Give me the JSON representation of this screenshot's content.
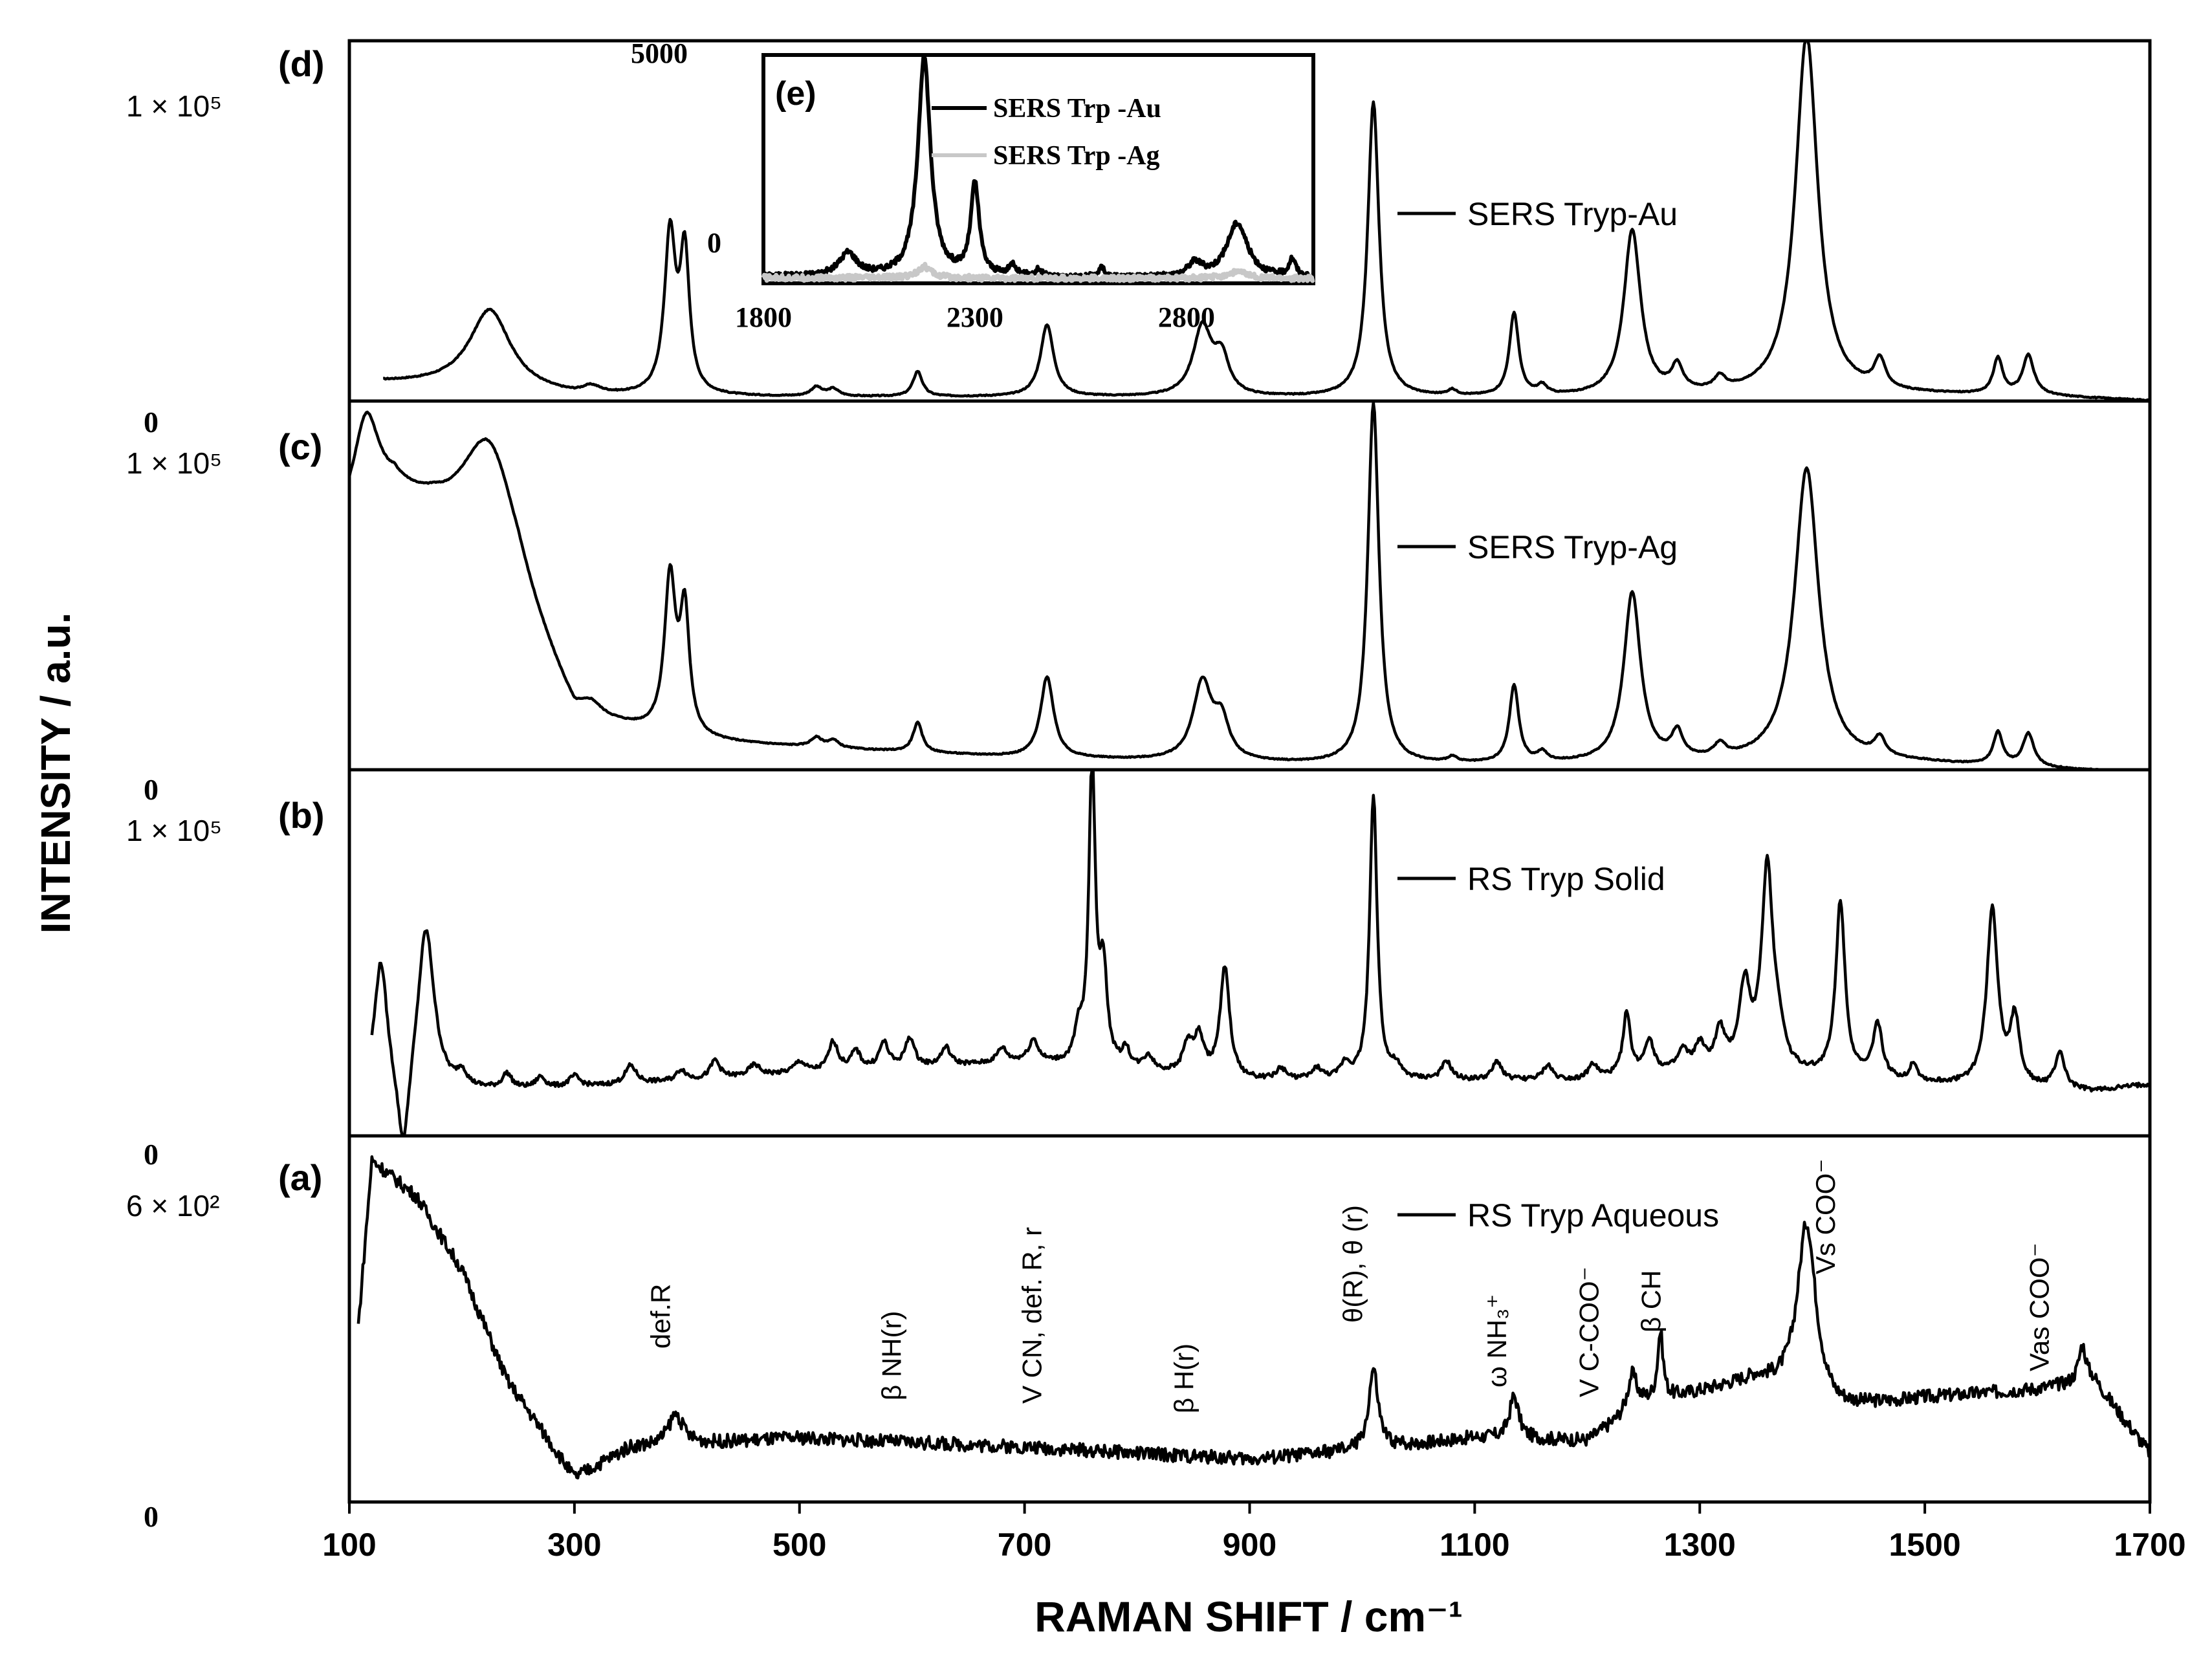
{
  "chart_data": {
    "type": "line",
    "xlabel": "RAMAN SHIFT / cm⁻¹",
    "ylabel": "INTENSITY / a.u.",
    "xlim": [
      100,
      1700
    ],
    "xticks": [
      "100",
      "300",
      "500",
      "700",
      "900",
      "1100",
      "1300",
      "1500",
      "1700"
    ],
    "panels": [
      {
        "id": "d",
        "label": "(d)",
        "ytop_label": "1 × 10⁵",
        "ybottom_label": "0",
        "ylim": [
          0,
          100000
        ],
        "series": [
          {
            "name": "SERS Tryp-Au",
            "legend": "SERS Tryp-Au",
            "baseline": [
              [
                130,
                5000
              ],
              [
                200,
                4000
              ],
              [
                300,
                1000
              ],
              [
                700,
                1000
              ],
              [
                900,
                800
              ],
              [
                1200,
                800
              ],
              [
                1500,
                1500
              ],
              [
                1600,
                1200
              ],
              [
                1700,
                0
              ]
            ],
            "peaks": [
              [
                225,
                22000,
                22
              ],
              [
                315,
                2000,
                10
              ],
              [
                385,
                44000,
                6
              ],
              [
                398,
                38000,
                5
              ],
              [
                515,
                2500,
                6
              ],
              [
                530,
                2000,
                6
              ],
              [
                605,
                7000,
                5
              ],
              [
                720,
                20000,
                7
              ],
              [
                858,
                19000,
                10
              ],
              [
                875,
                10000,
                8
              ],
              [
                1010,
                82000,
                6
              ],
              [
                1080,
                1500,
                5
              ],
              [
                1135,
                23000,
                5
              ],
              [
                1160,
                2500,
                5
              ],
              [
                1240,
                46000,
                9
              ],
              [
                1280,
                7000,
                6
              ],
              [
                1318,
                3500,
                6
              ],
              [
                1395,
                100000,
                12
              ],
              [
                1460,
                8000,
                6
              ],
              [
                1565,
                10000,
                5
              ],
              [
                1592,
                11000,
                6
              ]
            ]
          }
        ]
      },
      {
        "id": "c",
        "label": "(c)",
        "ytop_label": "1 × 10⁵",
        "ybottom_label": "0",
        "ylim": [
          0,
          100000
        ],
        "series": [
          {
            "name": "SERS Tryp-Ag",
            "legend": "SERS Tryp-Ag",
            "baseline": [
              [
                100,
                65000
              ],
              [
                140,
                72000
              ],
              [
                175,
                65000
              ],
              [
                250,
                40000
              ],
              [
                300,
                12000
              ],
              [
                400,
                7000
              ],
              [
                700,
                3000
              ],
              [
                1000,
                1000
              ],
              [
                1300,
                1500
              ],
              [
                1500,
                1500
              ],
              [
                1700,
                -1000
              ]
            ],
            "peaks": [
              [
                115,
                26000,
                14
              ],
              [
                225,
                40000,
                32
              ],
              [
                315,
                3000,
                10
              ],
              [
                385,
                42000,
                6
              ],
              [
                398,
                33000,
                5
              ],
              [
                515,
                2500,
                6
              ],
              [
                530,
                2000,
                6
              ],
              [
                605,
                8000,
                5
              ],
              [
                720,
                22000,
                7
              ],
              [
                858,
                21000,
                10
              ],
              [
                875,
                10000,
                8
              ],
              [
                1010,
                98000,
                6
              ],
              [
                1080,
                1500,
                5
              ],
              [
                1135,
                21000,
                5
              ],
              [
                1160,
                2500,
                5
              ],
              [
                1240,
                46000,
                9
              ],
              [
                1280,
                7000,
                6
              ],
              [
                1318,
                3500,
                6
              ],
              [
                1395,
                80000,
                13
              ],
              [
                1460,
                5000,
                6
              ],
              [
                1565,
                9000,
                5
              ],
              [
                1592,
                9000,
                6
              ]
            ]
          }
        ]
      },
      {
        "id": "b",
        "label": "(b)",
        "ytop_label": "1 × 10⁵",
        "ybottom_label": "0",
        "ylim": [
          0,
          100000
        ],
        "series": [
          {
            "name": "RS Tryp Solid",
            "legend": "RS Tryp Solid",
            "baseline": [
              [
                120,
                12000
              ],
              [
                200,
                12000
              ],
              [
                300,
                13000
              ],
              [
                500,
                17000
              ],
              [
                700,
                20000
              ],
              [
                900,
                15000
              ],
              [
                1100,
                15000
              ],
              [
                1200,
                15000
              ],
              [
                1300,
                18000
              ],
              [
                1500,
                14000
              ],
              [
                1650,
                12000
              ],
              [
                1700,
                14000
              ]
            ],
            "peaks": [
              [
                128,
                35000,
                7
              ],
              [
                148,
                -24000,
                6
              ],
              [
                168,
                45000,
                9
              ],
              [
                200,
                4000,
                5
              ],
              [
                240,
                4000,
                5
              ],
              [
                270,
                3000,
                5
              ],
              [
                300,
                3000,
                6
              ],
              [
                350,
                5000,
                6
              ],
              [
                395,
                3000,
                5
              ],
              [
                425,
                5000,
                5
              ],
              [
                460,
                3000,
                6
              ],
              [
                500,
                3000,
                6
              ],
              [
                530,
                8000,
                5
              ],
              [
                550,
                5000,
                5
              ],
              [
                575,
                7000,
                5
              ],
              [
                598,
                8000,
                5
              ],
              [
                630,
                5000,
                5
              ],
              [
                680,
                4000,
                5
              ],
              [
                708,
                6000,
                5
              ],
              [
                748,
                8000,
                4
              ],
              [
                760,
                82000,
                3.5
              ],
              [
                770,
                25000,
                4
              ],
              [
                790,
                5000,
                4
              ],
              [
                810,
                4000,
                5
              ],
              [
                845,
                8000,
                5
              ],
              [
                855,
                10000,
                5
              ],
              [
                878,
                30000,
                5
              ],
              [
                928,
                3000,
                5
              ],
              [
                960,
                3000,
                5
              ],
              [
                985,
                4000,
                5
              ],
              [
                1010,
                78000,
                4
              ],
              [
                1030,
                3000,
                5
              ],
              [
                1075,
                5000,
                5
              ],
              [
                1120,
                5000,
                5
              ],
              [
                1165,
                4000,
                5
              ],
              [
                1205,
                4000,
                5
              ],
              [
                1235,
                17000,
                4
              ],
              [
                1255,
                9000,
                5
              ],
              [
                1285,
                5000,
                5
              ],
              [
                1300,
                6000,
                5
              ],
              [
                1318,
                10000,
                5
              ],
              [
                1340,
                22000,
                6
              ],
              [
                1360,
                55000,
                6
              ],
              [
                1370,
                8000,
                6
              ],
              [
                1425,
                48000,
                5
              ],
              [
                1458,
                15000,
                5
              ],
              [
                1490,
                5000,
                4
              ],
              [
                1560,
                48000,
                6
              ],
              [
                1580,
                18000,
                5
              ],
              [
                1620,
                10000,
                5
              ]
            ]
          }
        ]
      },
      {
        "id": "a",
        "label": "(a)",
        "ytop_label": "6 × 10²",
        "ybottom_label": "0",
        "ylim": [
          0,
          600
        ],
        "series": [
          {
            "name": "RS Tryp Aqueous",
            "legend": "RS Tryp   Aqueous",
            "baseline": [
              [
                108,
                290
              ],
              [
                120,
                560
              ],
              [
                160,
                500
              ],
              [
                200,
                380
              ],
              [
                240,
                200
              ],
              [
                300,
                40
              ],
              [
                350,
                90
              ],
              [
                500,
                105
              ],
              [
                700,
                90
              ],
              [
                900,
                70
              ],
              [
                1000,
                85
              ],
              [
                1100,
                105
              ],
              [
                1200,
                100
              ],
              [
                1250,
                160
              ],
              [
                1300,
                180
              ],
              [
                1350,
                200
              ],
              [
                1420,
                150
              ],
              [
                1500,
                170
              ],
              [
                1600,
                185
              ],
              [
                1650,
                200
              ],
              [
                1700,
                80
              ]
            ],
            "peaks": [
              [
                390,
                50,
                8
              ],
              [
                1010,
                130,
                5
              ],
              [
                1135,
                70,
                5
              ],
              [
                1240,
                60,
                5
              ],
              [
                1265,
                110,
                3
              ],
              [
                1395,
                290,
                10
              ],
              [
                1640,
                60,
                4
              ]
            ]
          }
        ],
        "annotations": [
          {
            "text": "def.R",
            "x": 385
          },
          {
            "text": "β NH(r)",
            "x": 590
          },
          {
            "text": "V CN, def. R, r",
            "x": 715
          },
          {
            "text": "β H(r)",
            "x": 850
          },
          {
            "text": "θ(R), θ (r)",
            "x": 1000
          },
          {
            "text": "ω NH₃⁺",
            "x": 1128
          },
          {
            "text": "V C-COO⁻",
            "x": 1210
          },
          {
            "text": "β CH",
            "x": 1265
          },
          {
            "text": "Vs COO⁻",
            "x": 1420
          },
          {
            "text": "Vas COO⁻",
            "x": 1610
          }
        ]
      }
    ],
    "inset": {
      "label": "(e)",
      "xlim": [
        1800,
        3100
      ],
      "ylim": [
        0,
        5000
      ],
      "xticks": [
        "1800",
        "2300",
        "2800"
      ],
      "ytop_label": "5000",
      "ybottom_label": "0",
      "series": [
        {
          "name": "SERS Trp -Au",
          "legend": "SERS Trp -Au",
          "color": "#000000",
          "baseline": [
            [
              1800,
              150
            ],
            [
              3100,
              100
            ]
          ],
          "peaks": [
            [
              2000,
              500,
              25
            ],
            [
              2180,
              4800,
              18
            ],
            [
              2300,
              2000,
              12
            ],
            [
              2390,
              250,
              10
            ],
            [
              2450,
              150,
              8
            ],
            [
              2600,
              200,
              10
            ],
            [
              2820,
              300,
              20
            ],
            [
              2920,
              1200,
              30
            ],
            [
              3050,
              400,
              10
            ]
          ]
        },
        {
          "name": "SERS Trp -Ag",
          "legend": "SERS Trp -Ag",
          "color": "#c8c8c8",
          "baseline": [
            [
              1800,
              120
            ],
            [
              3100,
              100
            ]
          ],
          "peaks": [
            [
              2180,
              250,
              20
            ],
            [
              2920,
              150,
              30
            ]
          ]
        }
      ]
    }
  }
}
